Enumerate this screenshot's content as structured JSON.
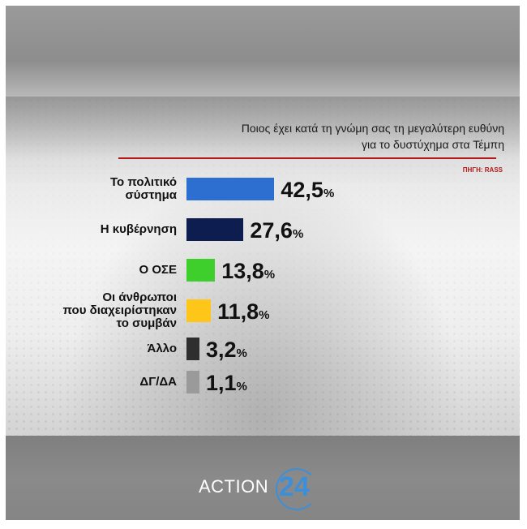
{
  "title_line1": "Ποιος έχει κατά τη γνώμη σας τη μεγαλύτερη ευθύνη",
  "title_line2": "για το δυστύχημα στα Τέμπη",
  "source": "ΠΗΓΗ: RASS",
  "logo": {
    "text": "ACTION",
    "number": "24"
  },
  "colors": {
    "accent": "#b21a1a",
    "logo_blue": "#3d8fd8"
  },
  "chart_data": {
    "type": "bar",
    "orientation": "horizontal",
    "title": "Ποιος έχει κατά τη γνώμη σας τη μεγαλύτερη ευθύνη για το δυστύχημα στα Τέμπη",
    "categories": [
      "Το πολιτικό σύστημα",
      "Η κυβέρνηση",
      "Ο ΟΣΕ",
      "Οι άνθρωποι που διαχειρίστηκαν το συμβάν",
      "Άλλο",
      "ΔΓ/ΔΑ"
    ],
    "label_lines": [
      [
        "Το πολιτικό",
        "σύστημα"
      ],
      [
        "Η κυβέρνηση"
      ],
      [
        "Ο ΟΣΕ"
      ],
      [
        "Οι άνθρωποι",
        "που διαχειρίστηκαν",
        "το συμβάν"
      ],
      [
        "Άλλο"
      ],
      [
        "ΔΓ/ΔΑ"
      ]
    ],
    "values": [
      42.5,
      27.6,
      13.8,
      11.8,
      3.2,
      1.1
    ],
    "value_labels": [
      "42,5",
      "27,6",
      "13,8",
      "11,8",
      "3,2",
      "1,1"
    ],
    "unit": "%",
    "bar_colors": [
      "#2c6fd0",
      "#0e1d4f",
      "#3fcf2c",
      "#ffc61a",
      "#2e2e2e",
      "#9a9a9a"
    ]
  }
}
